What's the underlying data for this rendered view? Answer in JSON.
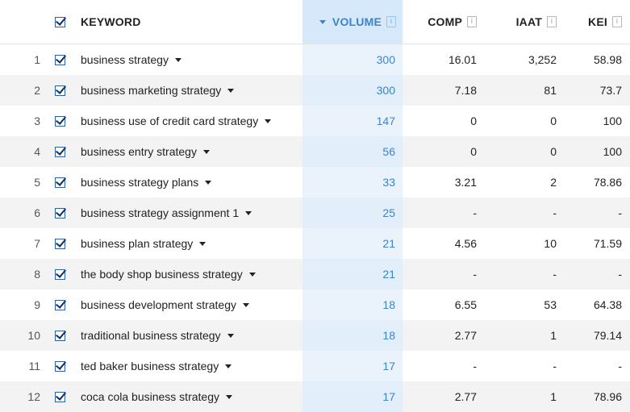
{
  "header": {
    "keyword": "KEYWORD",
    "volume": "VOLUME",
    "comp": "COMP",
    "iaat": "IAAT",
    "kei": "KEI",
    "info_glyph": "i"
  },
  "rows": [
    {
      "num": "1",
      "keyword": "business strategy",
      "volume": "300",
      "comp": "16.01",
      "iaat": "3,252",
      "kei": "58.98"
    },
    {
      "num": "2",
      "keyword": "business marketing strategy",
      "volume": "300",
      "comp": "7.18",
      "iaat": "81",
      "kei": "73.7"
    },
    {
      "num": "3",
      "keyword": "business use of credit card strategy",
      "volume": "147",
      "comp": "0",
      "iaat": "0",
      "kei": "100"
    },
    {
      "num": "4",
      "keyword": "business entry strategy",
      "volume": "56",
      "comp": "0",
      "iaat": "0",
      "kei": "100"
    },
    {
      "num": "5",
      "keyword": "business strategy plans",
      "volume": "33",
      "comp": "3.21",
      "iaat": "2",
      "kei": "78.86"
    },
    {
      "num": "6",
      "keyword": "business strategy assignment 1",
      "volume": "25",
      "comp": "-",
      "iaat": "-",
      "kei": "-"
    },
    {
      "num": "7",
      "keyword": "business plan strategy",
      "volume": "21",
      "comp": "4.56",
      "iaat": "10",
      "kei": "71.59"
    },
    {
      "num": "8",
      "keyword": "the body shop business strategy",
      "volume": "21",
      "comp": "-",
      "iaat": "-",
      "kei": "-"
    },
    {
      "num": "9",
      "keyword": "business development strategy",
      "volume": "18",
      "comp": "6.55",
      "iaat": "53",
      "kei": "64.38"
    },
    {
      "num": "10",
      "keyword": "traditional business strategy",
      "volume": "18",
      "comp": "2.77",
      "iaat": "1",
      "kei": "79.14"
    },
    {
      "num": "11",
      "keyword": "ted baker business strategy",
      "volume": "17",
      "comp": "-",
      "iaat": "-",
      "kei": "-"
    },
    {
      "num": "12",
      "keyword": "coca cola business strategy",
      "volume": "17",
      "comp": "2.77",
      "iaat": "1",
      "kei": "78.96"
    }
  ],
  "colors": {
    "volume_text": "#3a85c8",
    "volume_column_bg": "#eaf3fc",
    "stripe_bg": "#f3f3f3"
  },
  "icons": {
    "checkbox": "checked-checkbox-icon",
    "dropdown": "caret-down-icon",
    "sort": "sort-desc-icon",
    "info": "info-icon"
  }
}
